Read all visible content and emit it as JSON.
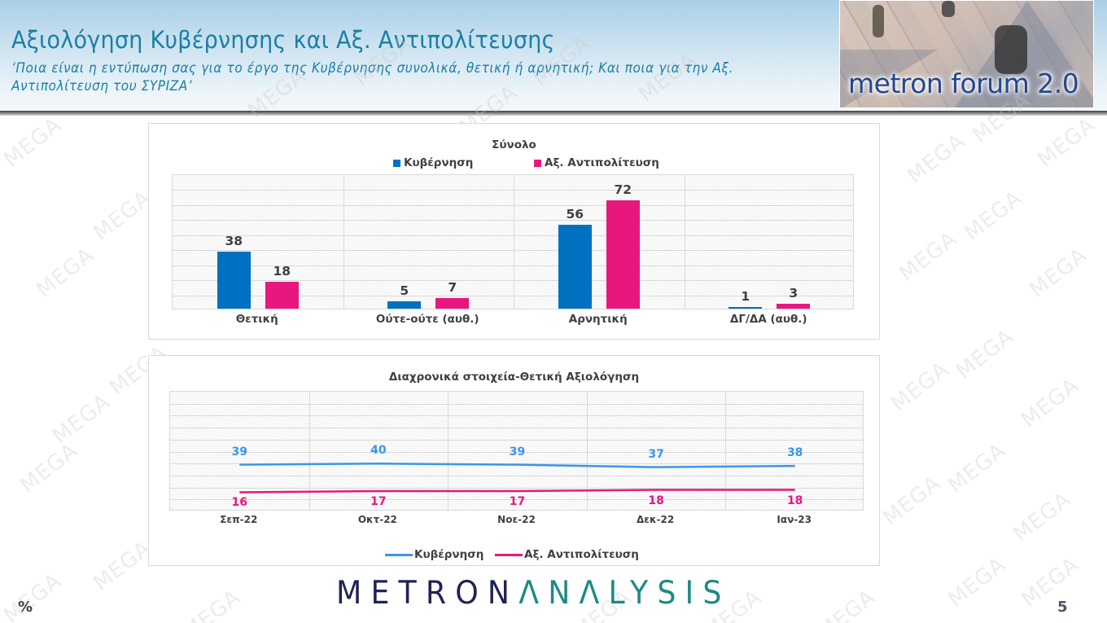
{
  "header": {
    "title": "Αξιολόγηση Κυβέρνησης και Αξ. Αντιπολίτευσης",
    "subtitle": "‘Ποια είναι η εντύπωση σας για το έργο της Κυβέρνησης συνολικά, θετική ή αρνητική; Και ποια για την Αξ. Αντιπολίτευση του ΣΥΡΙΖΑ’",
    "logo_text": "metron forum 2.0"
  },
  "watermark_text": "MEGA",
  "colors": {
    "government": "#0070c0",
    "opposition": "#e8177e",
    "government_line": "#3a96ec",
    "opposition_line": "#e8177e",
    "title_blue": "#1a7fa6"
  },
  "chart_data": [
    {
      "type": "bar",
      "title": "Σύνολο",
      "categories": [
        "Θετική",
        "Ούτε-ούτε (αυθ.)",
        "Αρνητική",
        "ΔΓ/ΔΑ (αυθ.)"
      ],
      "series": [
        {
          "name": "Κυβέρνηση",
          "values": [
            38,
            5,
            56,
            1
          ],
          "color": "#0070c0"
        },
        {
          "name": "Αξ. Αντιπολίτευση",
          "values": [
            18,
            7,
            72,
            3
          ],
          "color": "#e8177e"
        }
      ],
      "xlabel": "",
      "ylabel": "",
      "ylim": [
        0,
        90
      ],
      "grid": true,
      "legend_position": "top",
      "data_labels": true
    },
    {
      "type": "line",
      "title": "Διαχρονικά στοιχεία-Θετική Αξιολόγηση",
      "categories": [
        "Σεπ-22",
        "Οκτ-22",
        "Νοε-22",
        "Δεκ-22",
        "Ιαν-23"
      ],
      "series": [
        {
          "name": "Κυβέρνηση",
          "values": [
            39,
            40,
            39,
            37,
            38
          ],
          "color": "#3a96ec"
        },
        {
          "name": "Αξ. Αντιπολίτευση",
          "values": [
            16,
            17,
            17,
            18,
            18
          ],
          "color": "#e8177e"
        }
      ],
      "xlabel": "",
      "ylabel": "",
      "ylim": [
        0,
        100
      ],
      "grid": true,
      "legend_position": "bottom",
      "data_labels": true
    }
  ],
  "footer": {
    "unit": "%",
    "brand_part1": "METRON",
    "brand_part2": "ΛNΛLYSIS",
    "page_number": "5"
  }
}
